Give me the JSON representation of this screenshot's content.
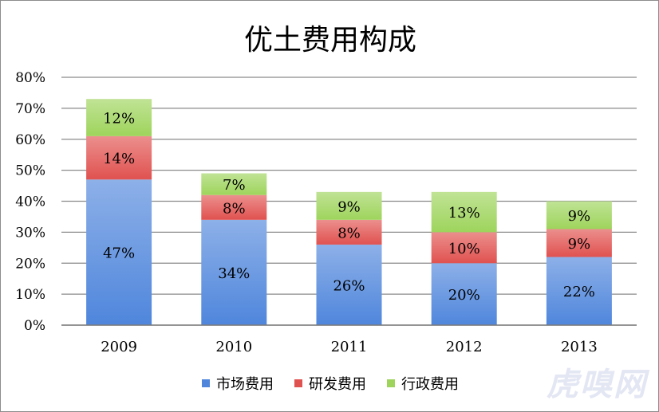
{
  "chart_data": {
    "type": "bar",
    "stacked": true,
    "title": "优土费用构成",
    "categories": [
      "2009",
      "2010",
      "2011",
      "2012",
      "2013"
    ],
    "series": [
      {
        "name": "市场费用",
        "values": [
          47,
          34,
          26,
          20,
          22
        ],
        "color": "#4f86dc"
      },
      {
        "name": "研发费用",
        "values": [
          14,
          8,
          8,
          10,
          9
        ],
        "color": "#e05250"
      },
      {
        "name": "行政费用",
        "values": [
          12,
          7,
          9,
          13,
          9
        ],
        "color": "#9ed45c"
      }
    ],
    "ylim": [
      0,
      80
    ],
    "yticks": [
      "0%",
      "10%",
      "20%",
      "30%",
      "40%",
      "50%",
      "60%",
      "70%",
      "80%"
    ],
    "value_suffix": "%",
    "grid": true,
    "legend_position": "bottom"
  },
  "watermark": "虎嗅网"
}
